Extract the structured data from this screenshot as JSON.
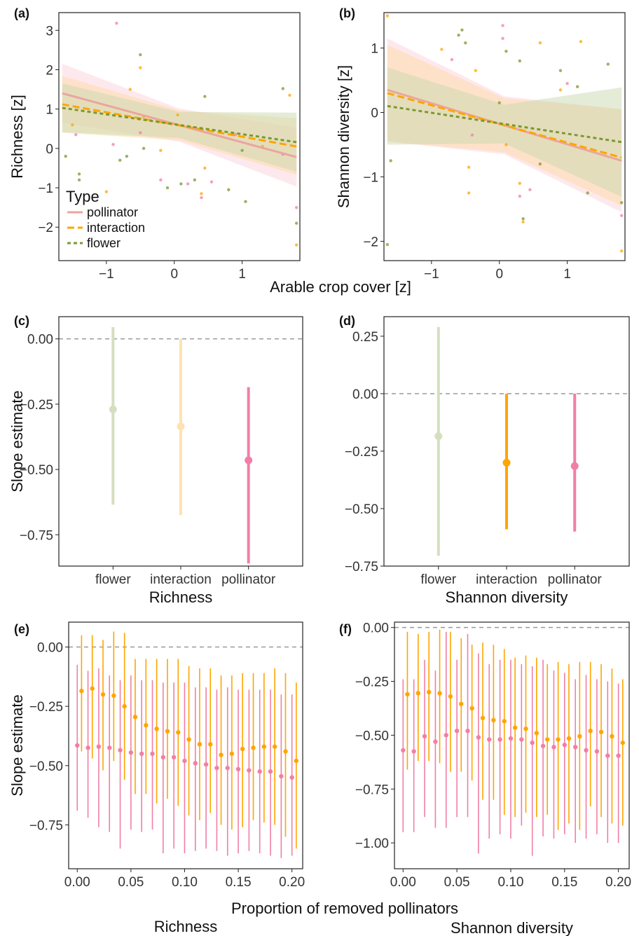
{
  "colors": {
    "pollinator": "#f07fa8",
    "pollinator_line": "#eba59e",
    "interaction": "#ffa500",
    "flower": "#7a9a2e",
    "flower_fade": "#d5dfc0",
    "interaction_fade": "#ffe2b0"
  },
  "shared": {
    "x_label_top": "Arable crop cover [z]",
    "x_label_bottom": "Proportion of removed pollinators"
  },
  "legend": {
    "title": "Type",
    "items": [
      {
        "label": "pollinator",
        "style": "solid",
        "color": "#eba59e"
      },
      {
        "label": "interaction",
        "style": "dashed",
        "color": "#ffa500"
      },
      {
        "label": "flower",
        "style": "dotted",
        "color": "#7a9a2e"
      }
    ]
  },
  "chart_data": [
    {
      "panel": "(a)",
      "type": "scatter",
      "ylabel": "Richness [z]",
      "xlim": [
        -1.7,
        1.85
      ],
      "ylim": [
        -2.85,
        3.45
      ],
      "xticks": [
        "−1",
        "0",
        "1"
      ],
      "yticks": [
        "−2",
        "−1",
        "0",
        "1",
        "2",
        "3"
      ],
      "lines": [
        {
          "name": "pollinator",
          "x": [
            -1.65,
            1.8
          ],
          "y": [
            1.4,
            -0.22
          ],
          "ci_halfwidth": [
            0.75,
            0.42,
            0.75
          ]
        },
        {
          "name": "interaction",
          "x": [
            -1.65,
            1.8
          ],
          "y": [
            1.12,
            0.05
          ],
          "ci_halfwidth": [
            0.72,
            0.38,
            0.72
          ]
        },
        {
          "name": "flower",
          "x": [
            -1.65,
            1.8
          ],
          "y": [
            1.03,
            0.16
          ],
          "ci_halfwidth": [
            0.62,
            0.33,
            0.75
          ]
        }
      ],
      "points": [
        {
          "type": "pollinator",
          "x": -0.85,
          "y": 3.18
        },
        {
          "type": "pollinator",
          "x": -1.45,
          "y": 0.35
        },
        {
          "type": "pollinator",
          "x": -0.5,
          "y": 0.4
        },
        {
          "type": "pollinator",
          "x": -0.2,
          "y": -0.8
        },
        {
          "type": "pollinator",
          "x": 0.2,
          "y": -0.9
        },
        {
          "type": "pollinator",
          "x": 0.4,
          "y": -1.25
        },
        {
          "type": "pollinator",
          "x": 0.55,
          "y": -0.85
        },
        {
          "type": "pollinator",
          "x": 1.6,
          "y": -0.15
        },
        {
          "type": "pollinator",
          "x": 1.8,
          "y": -1.5
        },
        {
          "type": "pollinator",
          "x": -0.9,
          "y": 0.1
        },
        {
          "type": "pollinator",
          "x": 0.9,
          "y": 0.35
        },
        {
          "type": "interaction",
          "x": -1.5,
          "y": 0.6
        },
        {
          "type": "interaction",
          "x": -1.0,
          "y": -1.1
        },
        {
          "type": "interaction",
          "x": -0.65,
          "y": 1.5
        },
        {
          "type": "interaction",
          "x": -0.5,
          "y": 2.05
        },
        {
          "type": "interaction",
          "x": -0.45,
          "y": 0.8
        },
        {
          "type": "interaction",
          "x": -0.2,
          "y": -0.05
        },
        {
          "type": "interaction",
          "x": 0.05,
          "y": 0.85
        },
        {
          "type": "interaction",
          "x": 0.4,
          "y": -1.15
        },
        {
          "type": "interaction",
          "x": 0.45,
          "y": -0.5
        },
        {
          "type": "interaction",
          "x": 1.3,
          "y": 0.05
        },
        {
          "type": "interaction",
          "x": 1.8,
          "y": -2.45
        },
        {
          "type": "interaction",
          "x": 1.7,
          "y": 1.35
        },
        {
          "type": "flower",
          "x": -1.6,
          "y": -0.2
        },
        {
          "type": "flower",
          "x": -1.4,
          "y": -0.65
        },
        {
          "type": "flower",
          "x": -1.4,
          "y": -0.8
        },
        {
          "type": "flower",
          "x": -0.8,
          "y": -0.3
        },
        {
          "type": "flower",
          "x": -0.7,
          "y": -0.2
        },
        {
          "type": "flower",
          "x": -0.5,
          "y": 2.38
        },
        {
          "type": "flower",
          "x": -0.45,
          "y": 0.0
        },
        {
          "type": "flower",
          "x": -0.1,
          "y": -1.0
        },
        {
          "type": "flower",
          "x": 0.1,
          "y": -0.9
        },
        {
          "type": "flower",
          "x": 0.3,
          "y": -0.8
        },
        {
          "type": "flower",
          "x": 0.45,
          "y": 1.32
        },
        {
          "type": "flower",
          "x": 0.8,
          "y": -1.05
        },
        {
          "type": "flower",
          "x": 1.0,
          "y": -0.05
        },
        {
          "type": "flower",
          "x": 1.05,
          "y": -1.35
        },
        {
          "type": "flower",
          "x": 1.6,
          "y": 1.52
        },
        {
          "type": "flower",
          "x": 1.8,
          "y": -1.9
        }
      ]
    },
    {
      "panel": "(b)",
      "type": "scatter",
      "ylabel": "Shannon diversity [z]",
      "xlim": [
        -1.7,
        1.85
      ],
      "ylim": [
        -2.3,
        1.55
      ],
      "xticks": [
        "−1",
        "0",
        "1"
      ],
      "yticks": [
        "−2",
        "−1",
        "0",
        "1"
      ],
      "lines": [
        {
          "name": "pollinator",
          "x": [
            -1.65,
            1.8
          ],
          "y": [
            0.35,
            -0.75
          ],
          "ci_halfwidth": [
            0.8,
            0.45,
            0.8
          ]
        },
        {
          "name": "interaction",
          "x": [
            -1.65,
            1.8
          ],
          "y": [
            0.3,
            -0.7
          ],
          "ci_halfwidth": [
            0.75,
            0.42,
            0.75
          ]
        },
        {
          "name": "flower",
          "x": [
            -1.65,
            1.8
          ],
          "y": [
            0.1,
            -0.46
          ],
          "ci_halfwidth": [
            0.6,
            0.3,
            0.85
          ]
        }
      ],
      "points": [
        {
          "type": "interaction",
          "x": -1.65,
          "y": 1.5
        },
        {
          "type": "flower",
          "x": -1.6,
          "y": -0.75
        },
        {
          "type": "flower",
          "x": -1.65,
          "y": -2.05
        },
        {
          "type": "interaction",
          "x": -0.85,
          "y": 0.98
        },
        {
          "type": "pollinator",
          "x": -0.7,
          "y": 0.82
        },
        {
          "type": "flower",
          "x": -0.6,
          "y": 1.2
        },
        {
          "type": "flower",
          "x": -0.55,
          "y": 1.28
        },
        {
          "type": "flower",
          "x": -0.5,
          "y": 1.08
        },
        {
          "type": "interaction",
          "x": -0.35,
          "y": 0.65
        },
        {
          "type": "pollinator",
          "x": -0.4,
          "y": -0.35
        },
        {
          "type": "interaction",
          "x": -0.45,
          "y": -0.85
        },
        {
          "type": "interaction",
          "x": -0.45,
          "y": -1.25
        },
        {
          "type": "flower",
          "x": 0.0,
          "y": 0.15
        },
        {
          "type": "pollinator",
          "x": 0.05,
          "y": 1.35
        },
        {
          "type": "pollinator",
          "x": 0.05,
          "y": 1.15
        },
        {
          "type": "flower",
          "x": 0.1,
          "y": 0.95
        },
        {
          "type": "interaction",
          "x": 0.1,
          "y": -0.5
        },
        {
          "type": "flower",
          "x": 0.3,
          "y": 0.8
        },
        {
          "type": "pollinator",
          "x": 0.3,
          "y": -1.3
        },
        {
          "type": "interaction",
          "x": 0.3,
          "y": -1.1
        },
        {
          "type": "flower",
          "x": 0.35,
          "y": -1.65
        },
        {
          "type": "interaction",
          "x": 0.35,
          "y": -1.7
        },
        {
          "type": "pollinator",
          "x": 0.45,
          "y": -1.2
        },
        {
          "type": "interaction",
          "x": 0.6,
          "y": 1.08
        },
        {
          "type": "flower",
          "x": 0.6,
          "y": -0.8
        },
        {
          "type": "flower",
          "x": 0.9,
          "y": 0.65
        },
        {
          "type": "interaction",
          "x": 0.9,
          "y": 0.35
        },
        {
          "type": "pollinator",
          "x": 1.0,
          "y": 0.45
        },
        {
          "type": "flower",
          "x": 1.15,
          "y": 0.4
        },
        {
          "type": "interaction",
          "x": 1.2,
          "y": 1.1
        },
        {
          "type": "flower",
          "x": 1.3,
          "y": -1.25
        },
        {
          "type": "flower",
          "x": 1.6,
          "y": 0.75
        },
        {
          "type": "pollinator",
          "x": 1.8,
          "y": -1.6
        },
        {
          "type": "interaction",
          "x": 1.8,
          "y": -2.15
        },
        {
          "type": "flower",
          "x": 1.8,
          "y": -1.4
        }
      ]
    },
    {
      "panel": "(c)",
      "type": "errorbar",
      "ylabel": "Slope estimate",
      "xlabel": "Richness",
      "categories": [
        "flower",
        "interaction",
        "pollinator"
      ],
      "values": [
        -0.27,
        -0.335,
        -0.465
      ],
      "lower": [
        -0.635,
        -0.675,
        -0.86
      ],
      "upper": [
        0.045,
        0.0,
        -0.185
      ],
      "faded": [
        true,
        true,
        false
      ],
      "ylim": [
        -0.87,
        0.085
      ],
      "yticks": [
        "0.00",
        "−0.25",
        "−0.50",
        "−0.75"
      ],
      "reference_line": 0
    },
    {
      "panel": "(d)",
      "type": "errorbar",
      "xlabel": "Shannon diversity",
      "categories": [
        "flower",
        "interaction",
        "pollinator"
      ],
      "values": [
        -0.185,
        -0.3,
        -0.315
      ],
      "lower": [
        -0.705,
        -0.59,
        -0.6
      ],
      "upper": [
        0.29,
        0.0,
        0.0
      ],
      "faded": [
        true,
        false,
        false
      ],
      "ylim": [
        -0.75,
        0.335
      ],
      "yticks": [
        "0.25",
        "0.00",
        "−0.25",
        "−0.50",
        "−0.75"
      ],
      "reference_line": 0
    },
    {
      "panel": "(e)",
      "type": "errorbar",
      "ylabel": "Slope estimate",
      "xlabel": "Richness",
      "xlim": [
        -0.008,
        0.21
      ],
      "ylim": [
        -0.935,
        0.105
      ],
      "xticks": [
        "0.00",
        "0.05",
        "0.10",
        "0.15",
        "0.20"
      ],
      "yticks": [
        "0.00",
        "−0.25",
        "−0.50",
        "−0.75"
      ],
      "reference_line": 0,
      "series": [
        {
          "name": "pollinator",
          "x": [
            0.0,
            0.01,
            0.02,
            0.03,
            0.04,
            0.05,
            0.06,
            0.07,
            0.08,
            0.09,
            0.1,
            0.11,
            0.12,
            0.13,
            0.14,
            0.15,
            0.16,
            0.17,
            0.18,
            0.19,
            0.2
          ],
          "values": [
            -0.415,
            -0.425,
            -0.42,
            -0.425,
            -0.435,
            -0.445,
            -0.45,
            -0.45,
            -0.465,
            -0.465,
            -0.48,
            -0.49,
            -0.495,
            -0.51,
            -0.51,
            -0.515,
            -0.52,
            -0.525,
            -0.525,
            -0.545,
            -0.55
          ],
          "lower": [
            -0.69,
            -0.72,
            -0.76,
            -0.78,
            -0.85,
            -0.77,
            -0.78,
            -0.77,
            -0.87,
            -0.85,
            -0.87,
            -0.86,
            -0.85,
            -0.86,
            -0.88,
            -0.87,
            -0.86,
            -0.87,
            -0.88,
            -0.89,
            -0.88
          ],
          "upper": [
            -0.075,
            -0.1,
            -0.09,
            -0.12,
            -0.14,
            -0.12,
            -0.14,
            -0.14,
            -0.15,
            -0.15,
            -0.15,
            -0.17,
            -0.17,
            -0.18,
            -0.17,
            -0.18,
            -0.18,
            -0.18,
            -0.18,
            -0.2,
            -0.2
          ]
        },
        {
          "name": "interaction",
          "x": [
            0.004,
            0.014,
            0.024,
            0.034,
            0.044,
            0.054,
            0.064,
            0.074,
            0.084,
            0.094,
            0.104,
            0.114,
            0.124,
            0.134,
            0.144,
            0.154,
            0.164,
            0.174,
            0.184,
            0.194,
            0.204
          ],
          "values": [
            -0.185,
            -0.175,
            -0.2,
            -0.205,
            -0.25,
            -0.295,
            -0.33,
            -0.345,
            -0.355,
            -0.36,
            -0.39,
            -0.41,
            -0.41,
            -0.455,
            -0.45,
            -0.43,
            -0.425,
            -0.42,
            -0.42,
            -0.44,
            -0.48
          ],
          "lower": [
            -0.44,
            -0.47,
            -0.52,
            -0.48,
            -0.56,
            -0.62,
            -0.62,
            -0.66,
            -0.64,
            -0.67,
            -0.71,
            -0.73,
            -0.7,
            -0.75,
            -0.77,
            -0.76,
            -0.73,
            -0.74,
            -0.75,
            -0.8,
            -0.85
          ],
          "upper": [
            0.05,
            0.05,
            0.03,
            0.065,
            0.06,
            -0.05,
            -0.05,
            -0.05,
            -0.05,
            -0.05,
            -0.08,
            -0.09,
            -0.09,
            -0.12,
            -0.12,
            -0.11,
            -0.11,
            -0.11,
            -0.09,
            -0.11,
            -0.15
          ]
        }
      ]
    },
    {
      "panel": "(f)",
      "type": "errorbar",
      "xlabel": "Shannon diversity",
      "xlim": [
        -0.008,
        0.21
      ],
      "ylim": [
        -1.12,
        0.025
      ],
      "xticks": [
        "0.00",
        "0.05",
        "0.10",
        "0.15",
        "0.20"
      ],
      "yticks": [
        "0.00",
        "−0.25",
        "−0.50",
        "−0.75",
        "−1.00"
      ],
      "reference_line": 0,
      "series": [
        {
          "name": "pollinator",
          "x": [
            0.0,
            0.01,
            0.02,
            0.03,
            0.04,
            0.05,
            0.06,
            0.07,
            0.08,
            0.09,
            0.1,
            0.11,
            0.12,
            0.13,
            0.14,
            0.15,
            0.16,
            0.17,
            0.18,
            0.19,
            0.2
          ],
          "values": [
            -0.57,
            -0.575,
            -0.505,
            -0.53,
            -0.5,
            -0.48,
            -0.48,
            -0.51,
            -0.52,
            -0.52,
            -0.515,
            -0.52,
            -0.535,
            -0.55,
            -0.555,
            -0.545,
            -0.555,
            -0.57,
            -0.575,
            -0.595,
            -0.595
          ],
          "lower": [
            -0.95,
            -0.95,
            -0.88,
            -0.93,
            -0.93,
            -0.88,
            -0.88,
            -1.05,
            -0.98,
            -0.96,
            -0.98,
            -0.92,
            -1.06,
            -0.97,
            -0.98,
            -0.96,
            -1.0,
            -0.98,
            -0.96,
            -1.0,
            -1.0
          ],
          "upper": [
            -0.24,
            -0.24,
            -0.15,
            -0.2,
            -0.02,
            -0.15,
            -0.03,
            -0.12,
            -0.17,
            -0.15,
            -0.15,
            -0.17,
            -0.18,
            -0.15,
            -0.2,
            -0.21,
            -0.24,
            -0.22,
            -0.24,
            -0.25,
            -0.26
          ]
        },
        {
          "name": "interaction",
          "x": [
            0.004,
            0.014,
            0.024,
            0.034,
            0.044,
            0.054,
            0.064,
            0.074,
            0.084,
            0.094,
            0.104,
            0.114,
            0.124,
            0.134,
            0.144,
            0.154,
            0.164,
            0.174,
            0.184,
            0.194,
            0.204
          ],
          "values": [
            -0.31,
            -0.305,
            -0.3,
            -0.305,
            -0.32,
            -0.355,
            -0.375,
            -0.42,
            -0.43,
            -0.435,
            -0.465,
            -0.47,
            -0.49,
            -0.52,
            -0.52,
            -0.515,
            -0.505,
            -0.48,
            -0.485,
            -0.505,
            -0.535
          ],
          "lower": [
            -0.66,
            -0.62,
            -0.62,
            -0.63,
            -0.67,
            -0.67,
            -0.71,
            -0.8,
            -0.8,
            -0.87,
            -0.88,
            -0.86,
            -0.88,
            -0.87,
            -0.94,
            -0.91,
            -0.94,
            -0.83,
            -0.88,
            -0.91,
            -0.92
          ],
          "upper": [
            -0.02,
            -0.03,
            -0.02,
            -0.01,
            -0.02,
            -0.05,
            -0.08,
            -0.07,
            -0.08,
            -0.1,
            -0.14,
            -0.13,
            -0.14,
            -0.17,
            -0.16,
            -0.17,
            -0.16,
            -0.16,
            -0.17,
            -0.19,
            -0.24
          ]
        }
      ]
    }
  ]
}
